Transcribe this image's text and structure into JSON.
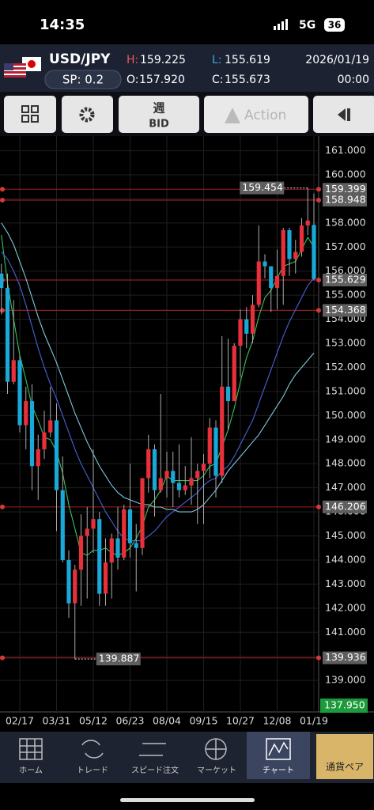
{
  "status_bar": {
    "time": "14:35",
    "network": "5G",
    "battery": "36"
  },
  "header": {
    "symbol": "USD/JPY",
    "spread": "SP: 0.2",
    "high_label": "H:",
    "high": "159.225",
    "low_label": "L:",
    "low": "155.619",
    "open_label": "O:",
    "open": "157.920",
    "close_label": "C:",
    "close": "155.673",
    "date": "2026/01/19",
    "time": "00:00"
  },
  "toolbar": {
    "period": "週",
    "price_type": "BID",
    "action": "Action"
  },
  "chart_data": {
    "type": "candlestick",
    "up_color": "#e8303a",
    "down_color": "#19a8d8",
    "categories": [
      null,
      null,
      null,
      "02/17",
      null,
      null,
      null,
      null,
      null,
      "03/31",
      null,
      null,
      null,
      null,
      null,
      "05/12",
      null,
      null,
      null,
      null,
      null,
      "06/23",
      null,
      null,
      null,
      null,
      null,
      "08/04",
      null,
      null,
      null,
      null,
      null,
      "09/15",
      null,
      null,
      null,
      null,
      null,
      "10/27",
      null,
      null,
      null,
      null,
      null,
      "12/08",
      null,
      null,
      null,
      null,
      null,
      "01/19"
    ],
    "open": [
      155.9,
      155.3,
      151.4,
      152.3,
      149.6,
      150.6,
      147.9,
      148.6,
      149.3,
      149.8,
      146.9,
      144.0,
      142.2,
      143.6,
      145.0,
      145.3,
      145.7,
      142.6,
      143.9,
      144.9,
      144.1,
      146.1,
      144.7,
      144.5,
      147.4,
      148.6,
      146.9,
      147.4,
      147.7,
      147.2,
      146.9,
      147.1,
      147.4,
      147.7,
      148.0,
      149.5,
      147.5,
      151.2,
      150.6,
      152.9,
      154.0,
      153.4,
      154.6,
      156.4,
      156.2,
      155.3,
      155.8,
      157.7,
      156.5,
      156.8,
      157.9,
      157.92
    ],
    "high": [
      156.3,
      155.9,
      154.8,
      152.5,
      151.2,
      151.3,
      149.2,
      150.2,
      151.2,
      150.5,
      148.3,
      144.4,
      143.8,
      145.9,
      146.2,
      148.6,
      146.0,
      144.9,
      145.1,
      146.2,
      146.3,
      148.0,
      145.5,
      147.4,
      149.2,
      148.8,
      150.9,
      148.5,
      148.5,
      148.8,
      147.9,
      149.1,
      148.0,
      148.4,
      149.9,
      149.8,
      153.3,
      153.2,
      153.0,
      154.4,
      154.5,
      155.0,
      157.9,
      156.7,
      156.2,
      156.9,
      157.8,
      157.8,
      157.3,
      158.2,
      159.454,
      159.225
    ],
    "low": [
      154.2,
      150.9,
      151.3,
      149.3,
      148.6,
      146.9,
      146.5,
      148.2,
      149.1,
      145.2,
      143.9,
      141.6,
      139.887,
      142.1,
      142.4,
      144.3,
      142.1,
      142.1,
      142.4,
      143.6,
      144.0,
      144.1,
      142.7,
      144.2,
      146.8,
      145.8,
      146.8,
      146.6,
      146.2,
      146.6,
      146.7,
      146.3,
      145.5,
      145.5,
      147.4,
      146.6,
      147.2,
      149.4,
      150.6,
      151.6,
      152.8,
      153.0,
      154.5,
      155.7,
      154.3,
      154.4,
      154.6,
      155.8,
      155.9,
      156.6,
      157.5,
      155.619
    ],
    "close": [
      155.3,
      151.4,
      152.3,
      149.6,
      150.6,
      147.9,
      148.6,
      149.3,
      149.8,
      146.9,
      144.0,
      142.2,
      143.6,
      145.0,
      145.3,
      145.7,
      142.6,
      143.9,
      144.9,
      144.1,
      146.1,
      144.7,
      144.5,
      147.4,
      148.6,
      146.9,
      147.4,
      147.7,
      147.2,
      146.9,
      147.1,
      147.4,
      147.7,
      148.0,
      149.5,
      147.5,
      151.2,
      150.6,
      152.9,
      154.0,
      153.4,
      154.6,
      156.4,
      156.2,
      155.3,
      155.8,
      157.7,
      156.5,
      156.8,
      157.9,
      158.1,
      155.673
    ],
    "moving_averages": [
      {
        "color": "#35c35a",
        "values": [
          157.5,
          155.5,
          154.0,
          152.5,
          151.5,
          150.4,
          149.8,
          149.1,
          149.0,
          148.5,
          147.6,
          146.3,
          145.3,
          144.3,
          144.2,
          144.4,
          144.4,
          144.5,
          144.3,
          144.2,
          144.3,
          144.5,
          144.9,
          145.4,
          146.2,
          146.5,
          146.9,
          147.5,
          147.3,
          147.3,
          147.3,
          147.3,
          147.3,
          147.5,
          147.9,
          148.0,
          148.7,
          149.4,
          150.3,
          151.4,
          152.4,
          153.1,
          154.1,
          154.9,
          155.2,
          155.7,
          156.2,
          156.3,
          156.4,
          156.9,
          157.4,
          157.0
        ]
      },
      {
        "color": "#4a62d8",
        "values": [
          156.8,
          156.5,
          156.0,
          155.4,
          154.6,
          153.7,
          152.8,
          152.0,
          151.3,
          150.7,
          150.0,
          149.3,
          148.6,
          148.0,
          147.5,
          147.0,
          146.5,
          146.0,
          145.6,
          145.2,
          144.9,
          144.8,
          144.8,
          144.8,
          145.0,
          145.2,
          145.5,
          145.8,
          146.0,
          146.2,
          146.4,
          146.6,
          146.8,
          147.1,
          147.3,
          147.4,
          147.7,
          147.9,
          148.3,
          148.8,
          149.3,
          149.8,
          150.5,
          151.2,
          151.9,
          152.6,
          153.3,
          153.9,
          154.4,
          154.9,
          155.4,
          155.7
        ]
      },
      {
        "color": "#7fc8dc",
        "values": [
          158.0,
          157.6,
          157.1,
          156.4,
          155.7,
          154.9,
          154.1,
          153.4,
          152.8,
          152.2,
          151.5,
          150.8,
          150.1,
          149.5,
          148.9,
          148.4,
          147.9,
          147.5,
          147.1,
          146.8,
          146.6,
          146.5,
          146.4,
          146.3,
          146.3,
          146.2,
          146.2,
          146.1,
          146.1,
          146.0,
          146.0,
          146.0,
          146.1,
          146.3,
          146.6,
          146.9,
          147.3,
          147.7,
          148.0,
          148.3,
          148.6,
          148.9,
          149.2,
          149.6,
          150.0,
          150.4,
          150.8,
          151.3,
          151.7,
          152.0,
          152.3,
          152.6
        ]
      }
    ],
    "levels": [
      159.399,
      158.948,
      155.629,
      154.368,
      146.206,
      139.936
    ],
    "markers": [
      159.454,
      139.887
    ],
    "price_marker": {
      "value": 137.95,
      "label": "137.950"
    },
    "ylim": [
      137.69,
      161.61
    ],
    "yticks": [
      {
        "value": 161,
        "label": "161.000"
      },
      {
        "value": 160,
        "label": "160.000"
      },
      {
        "value": 159,
        "label": "159.000"
      },
      {
        "value": 158,
        "label": "158.000"
      },
      {
        "value": 157,
        "label": "157.000"
      },
      {
        "value": 156,
        "label": "156.000"
      },
      {
        "value": 155,
        "label": "155.000"
      },
      {
        "value": 154,
        "label": "154.000"
      },
      {
        "value": 153,
        "label": "153.000"
      },
      {
        "value": 152,
        "label": "152.000"
      },
      {
        "value": 151,
        "label": "151.000"
      },
      {
        "value": 150,
        "label": "150.000"
      },
      {
        "value": 149,
        "label": "149.000"
      },
      {
        "value": 148,
        "label": "148.000"
      },
      {
        "value": 147,
        "label": "147.000"
      },
      {
        "value": 146,
        "label": "146.000"
      },
      {
        "value": 145,
        "label": "145.000"
      },
      {
        "value": 144,
        "label": "144.000"
      },
      {
        "value": 143,
        "label": "143.000"
      },
      {
        "value": 142,
        "label": "142.000"
      },
      {
        "value": 141,
        "label": "141.000"
      },
      {
        "value": 140,
        "label": "140.000"
      },
      {
        "value": 139,
        "label": "139.000"
      }
    ]
  },
  "nav": [
    "ホーム",
    "トレード",
    "スピード注文",
    "マーケット",
    "チャート",
    "通貨ペア"
  ]
}
